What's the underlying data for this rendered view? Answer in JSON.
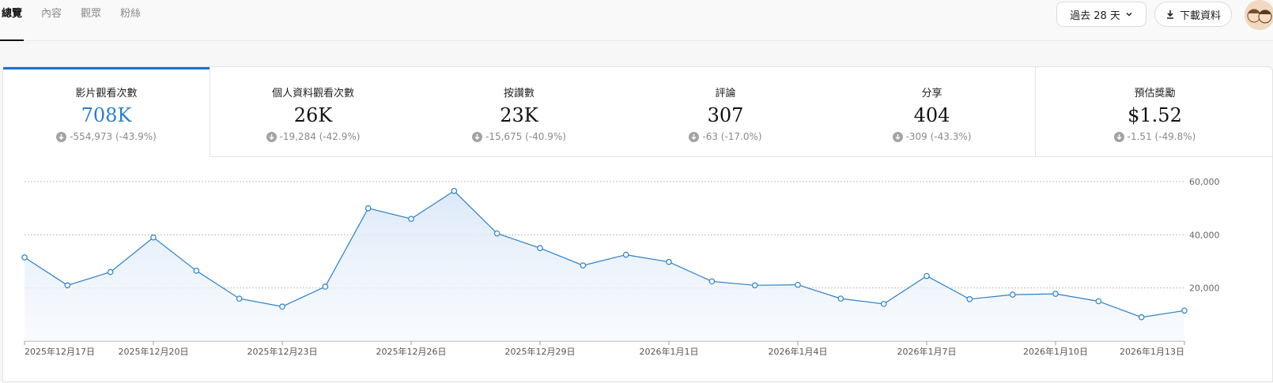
{
  "tabs": [
    {
      "label": "總覽",
      "active": true
    },
    {
      "label": "內容",
      "active": false
    },
    {
      "label": "觀眾",
      "active": false
    },
    {
      "label": "粉絲",
      "active": false
    }
  ],
  "toolbar": {
    "range_label": "過去 28 天",
    "download_label": "下載資料"
  },
  "metrics": [
    {
      "label": "影片觀看次數",
      "value": "708K",
      "delta": "-554,973 (-43.9%)"
    },
    {
      "label": "個人資料觀看次數",
      "value": "26K",
      "delta": "-19,284 (-42.9%)"
    },
    {
      "label": "按讚數",
      "value": "23K",
      "delta": "-15,675 (-40.9%)"
    },
    {
      "label": "評論",
      "value": "307",
      "delta": "-63 (-17.0%)"
    },
    {
      "label": "分享",
      "value": "404",
      "delta": "-309 (-43.3%)"
    },
    {
      "label": "預估獎勵",
      "value": "$1.52",
      "delta": "-1.51 (-49.8%)"
    }
  ],
  "colors": {
    "accent": "#1a73c9",
    "line": "#2d7fc8",
    "fill": "#e6f0fb"
  },
  "chart_data": {
    "type": "area",
    "x": [
      "2025-12-17",
      "2025-12-18",
      "2025-12-19",
      "2025-12-20",
      "2025-12-21",
      "2025-12-22",
      "2025-12-23",
      "2025-12-24",
      "2025-12-25",
      "2025-12-26",
      "2025-12-27",
      "2025-12-28",
      "2025-12-29",
      "2025-12-30",
      "2025-12-31",
      "2026-01-01",
      "2026-01-02",
      "2026-01-03",
      "2026-01-04",
      "2026-01-05",
      "2026-01-06",
      "2026-01-07",
      "2026-01-08",
      "2026-01-09",
      "2026-01-10",
      "2026-01-11",
      "2026-01-12",
      "2026-01-13"
    ],
    "values": [
      31500,
      21000,
      26000,
      39000,
      26500,
      16000,
      13000,
      20500,
      50000,
      46000,
      56500,
      40500,
      35000,
      28500,
      32500,
      29800,
      22500,
      21000,
      21200,
      16000,
      14000,
      24500,
      15800,
      17500,
      17800,
      15000,
      9000,
      11500
    ],
    "x_tick_labels": [
      "2025年12月17日",
      "2025年12月20日",
      "2025年12月23日",
      "2025年12月26日",
      "2025年12月29日",
      "2026年1月1日",
      "2026年1月4日",
      "2026年1月7日",
      "2026年1月10日",
      "2026年1月13日"
    ],
    "y_ticks": [
      20000,
      40000,
      60000
    ],
    "y_tick_labels": [
      "20,000",
      "40,000",
      "60,000"
    ],
    "ylim": [
      0,
      60000
    ],
    "grid": true,
    "legend": "none"
  }
}
